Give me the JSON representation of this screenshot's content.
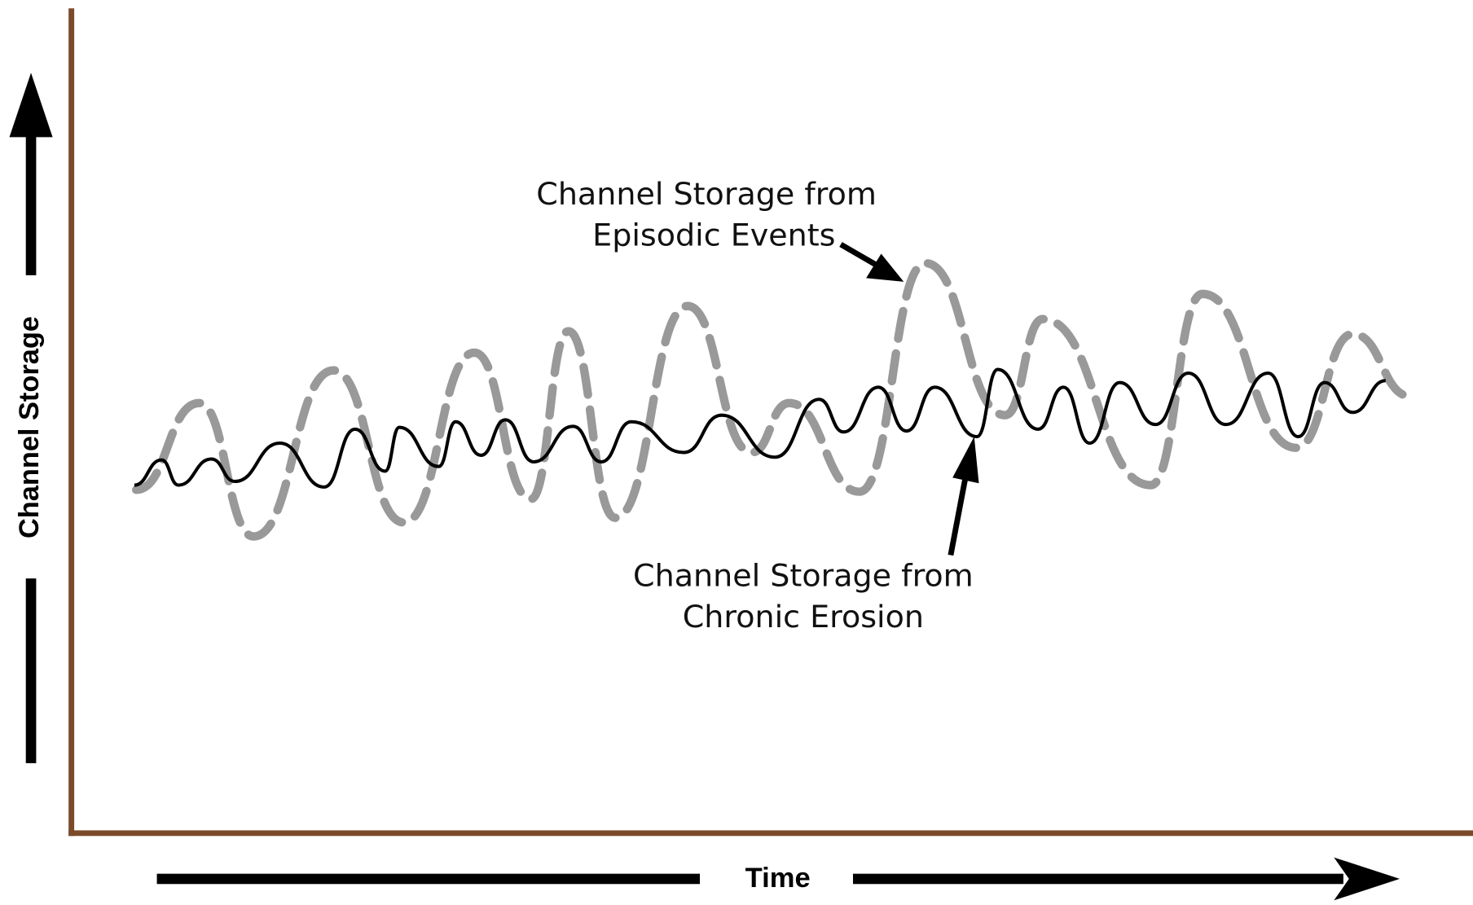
{
  "axes": {
    "y_label": "Channel Storage",
    "x_label": "Time"
  },
  "annotations": [
    {
      "lines": [
        "Channel Storage from",
        "Episodic Events"
      ]
    },
    {
      "lines": [
        "Channel Storage from",
        "Chronic Erosion"
      ]
    }
  ]
}
